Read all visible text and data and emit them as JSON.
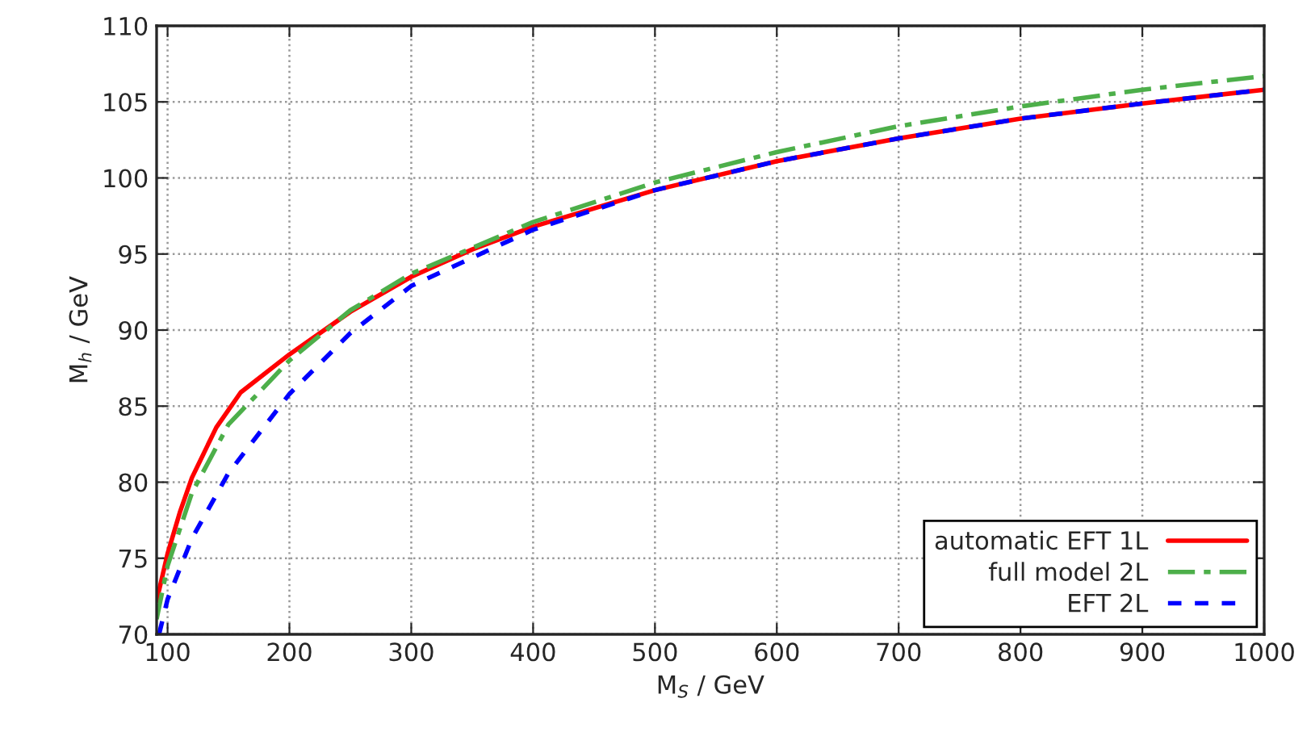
{
  "chart_data": {
    "type": "line",
    "xlabel": "M$_{S}$ / GeV",
    "ylabel": "M$_{h}$ / GeV",
    "xlim": [
      91,
      1000
    ],
    "ylim": [
      70,
      110
    ],
    "xticks": [
      100,
      200,
      300,
      400,
      500,
      600,
      700,
      800,
      900,
      1000
    ],
    "yticks": [
      70,
      75,
      80,
      85,
      90,
      95,
      100,
      105,
      110
    ],
    "grid": true,
    "legend": "bottom right",
    "series": [
      {
        "name": "automatic EFT 1L",
        "color": "#ff0000",
        "line_style": "solid",
        "x": [
          91,
          100,
          110,
          120,
          140,
          160,
          200,
          250,
          300,
          350,
          400,
          500,
          600,
          700,
          800,
          900,
          1000
        ],
        "values": [
          72.2,
          75.3,
          78,
          80.3,
          83.6,
          85.9,
          88.4,
          91.2,
          93.5,
          95.3,
          96.8,
          99.2,
          101.1,
          102.6,
          103.9,
          104.9,
          105.8
        ]
      },
      {
        "name": "full model 2L",
        "color": "#4daf4a",
        "line_style": "dashdot",
        "x": [
          91,
          100,
          120,
          150,
          200,
          250,
          300,
          400,
          500,
          600,
          700,
          800,
          900,
          1000
        ],
        "values": [
          71,
          74.5,
          79.3,
          83.8,
          88,
          91.3,
          93.7,
          97.1,
          99.7,
          101.7,
          103.4,
          104.7,
          105.8,
          106.7
        ]
      },
      {
        "name": "EFT 2L",
        "color": "#0000ff",
        "line_style": "dashed",
        "x": [
          93,
          100,
          120,
          150,
          200,
          250,
          300,
          400,
          500,
          600,
          700,
          800,
          900,
          1000
        ],
        "values": [
          70,
          72.3,
          76.3,
          80.6,
          85.8,
          89.8,
          92.9,
          96.6,
          99.2,
          101.1,
          102.6,
          103.9,
          104.9,
          105.8
        ]
      }
    ]
  }
}
